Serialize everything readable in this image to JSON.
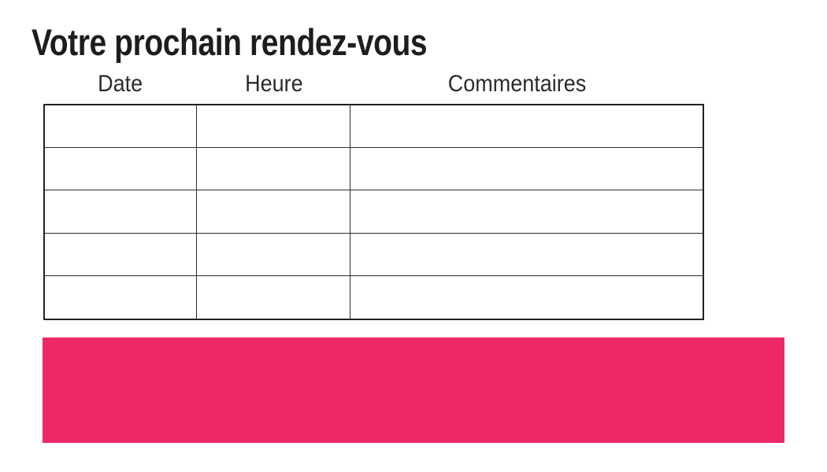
{
  "page": {
    "title": "Votre prochain rendez-vous",
    "background_color": "#ffffff",
    "text_color": "#1d1d1b",
    "accent_color": "#ED2A67"
  },
  "appointment_table": {
    "columns": [
      {
        "label": "Date"
      },
      {
        "label": "Heure"
      },
      {
        "label": "Commentaires"
      }
    ],
    "rows": [
      [
        "",
        "",
        ""
      ],
      [
        "",
        "",
        ""
      ],
      [
        "",
        "",
        ""
      ],
      [
        "",
        "",
        ""
      ],
      [
        "",
        "",
        ""
      ]
    ]
  },
  "banner": {
    "label": ""
  }
}
